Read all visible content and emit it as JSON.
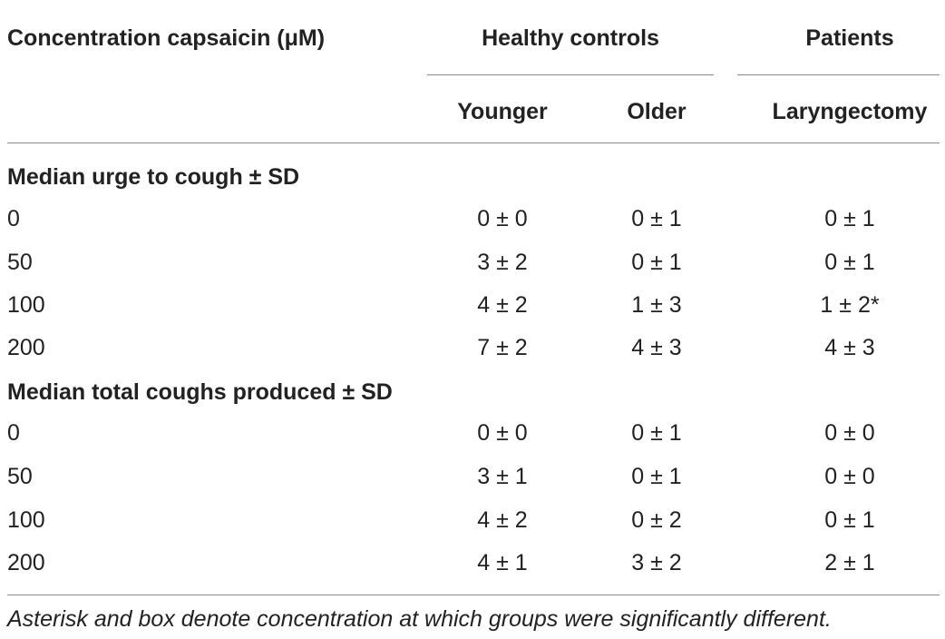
{
  "header": {
    "col0": "Concentration capsaicin (μM)",
    "group_controls": "Healthy controls",
    "group_patients": "Patients",
    "sub_younger": "Younger",
    "sub_older": "Older",
    "sub_laryngectomy": "Laryngectomy"
  },
  "sections": [
    {
      "title": "Median urge to cough ± SD",
      "rows": [
        {
          "conc": "0",
          "younger": "0 ± 0",
          "older": "0 ± 1",
          "laryngectomy": "0 ± 1"
        },
        {
          "conc": "50",
          "younger": "3 ± 2",
          "older": "0 ± 1",
          "laryngectomy": "0 ± 1"
        },
        {
          "conc": "100",
          "younger": "4 ± 2",
          "older": "1 ± 3",
          "laryngectomy": "1 ± 2*"
        },
        {
          "conc": "200",
          "younger": "7 ± 2",
          "older": "4 ± 3",
          "laryngectomy": "4 ± 3"
        }
      ]
    },
    {
      "title": "Median total coughs produced ± SD",
      "rows": [
        {
          "conc": "0",
          "younger": "0 ± 0",
          "older": "0 ± 1",
          "laryngectomy": "0 ± 0"
        },
        {
          "conc": "50",
          "younger": "3 ± 1",
          "older": "0 ± 1",
          "laryngectomy": "0 ± 0"
        },
        {
          "conc": "100",
          "younger": "4 ± 2",
          "older": "0 ± 2",
          "laryngectomy": "0 ± 1"
        },
        {
          "conc": "200",
          "younger": "4 ± 1",
          "older": "3 ± 2",
          "laryngectomy": "2 ± 1"
        }
      ]
    }
  ],
  "footnote": "Asterisk and box denote concentration at which groups were significantly different."
}
